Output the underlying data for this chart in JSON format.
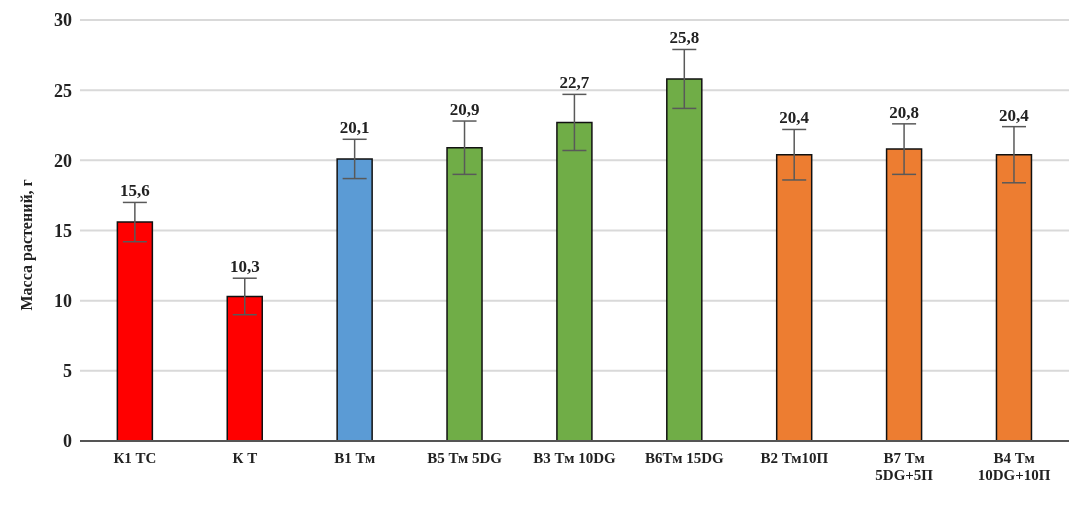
{
  "chart_data": {
    "type": "bar",
    "ylabel": "Масса  растений,  г",
    "categories": [
      "К1 ТС",
      "К Т",
      "В1 Тм",
      "В5 Тм 5DG",
      "В3 Тм 10DG",
      "В6Тм 15DG",
      "В2 Тм10П",
      "В7 Тм 5DG+5П",
      "В4 Тм 10DG+10П"
    ],
    "values": [
      15.6,
      10.3,
      20.1,
      20.9,
      22.7,
      25.8,
      20.4,
      20.8,
      20.4
    ],
    "value_labels": [
      "15,6",
      "10,3",
      "20,1",
      "20,9",
      "22,7",
      "25,8",
      "20,4",
      "20,8",
      "20,4"
    ],
    "errors": [
      1.4,
      1.3,
      1.4,
      1.9,
      2.0,
      2.1,
      1.8,
      1.8,
      2.0
    ],
    "colors": [
      "#ff0000",
      "#ff0000",
      "#5b9bd5",
      "#70ad47",
      "#70ad47",
      "#70ad47",
      "#ed7d31",
      "#ed7d31",
      "#ed7d31"
    ],
    "ylim": [
      0,
      30
    ],
    "yticks": [
      0,
      5,
      10,
      15,
      20,
      25,
      30
    ],
    "grid": "y",
    "legend": false
  }
}
